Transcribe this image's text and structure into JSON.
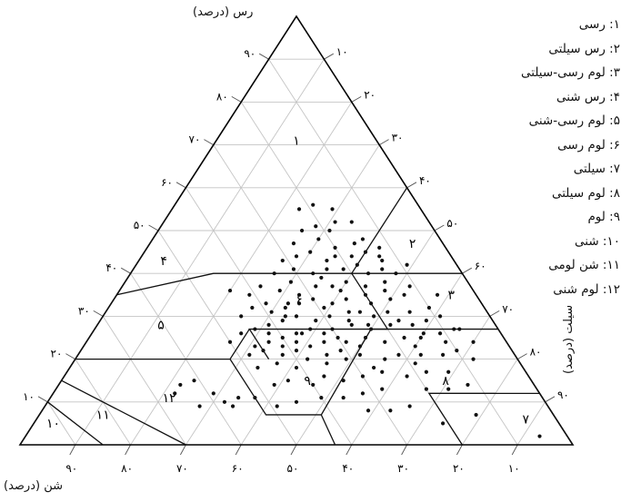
{
  "chart_data": {
    "type": "scatter",
    "plot_type": "ternary soil texture triangle",
    "axes": {
      "clay": {
        "label": "رس (درصد)",
        "ticks": [
          "۱۰",
          "۲۰",
          "۳۰",
          "۴۰",
          "۵۰",
          "۶۰",
          "۷۰",
          "۸۰",
          "۹۰"
        ]
      },
      "silt": {
        "label": "سیلت (درصد)",
        "ticks": [
          "۱۰",
          "۲۰",
          "۳۰",
          "۴۰",
          "۵۰",
          "۶۰",
          "۷۰",
          "۸۰",
          "۹۰"
        ]
      },
      "sand": {
        "label": "شن (درصد)",
        "ticks": [
          "۱۰",
          "۲۰",
          "۳۰",
          "۴۰",
          "۵۰",
          "۶۰",
          "۷۰",
          "۸۰",
          "۹۰"
        ]
      }
    },
    "grid": true,
    "legend_position": "top-right",
    "classes": [
      {
        "id": "1",
        "label": "۱: رسی",
        "marker": "۱",
        "sand": 15,
        "clay": 70
      },
      {
        "id": "2",
        "label": "۲: رس سیلتی",
        "marker": "۲",
        "sand": 6,
        "clay": 46
      },
      {
        "id": "3",
        "label": "۳: لوم رسی-سیلتی",
        "marker": "۳",
        "sand": 5,
        "clay": 34
      },
      {
        "id": "4",
        "label": "۴: رس شنی",
        "marker": "۴",
        "sand": 53,
        "clay": 42
      },
      {
        "id": "5",
        "label": "۵: لوم رسی-شنی",
        "marker": "۵",
        "sand": 61,
        "clay": 27
      },
      {
        "id": "6",
        "label": "۶: لوم رسی",
        "marker": "۶",
        "sand": 33,
        "clay": 33
      },
      {
        "id": "7",
        "label": "۷: سیلتی",
        "marker": "۷",
        "sand": 6,
        "clay": 5
      },
      {
        "id": "8",
        "label": "۸: لوم سیلتی",
        "marker": "۸",
        "sand": 16,
        "clay": 14
      },
      {
        "id": "9",
        "label": "۹: لوم",
        "marker": "۹",
        "sand": 41,
        "clay": 14
      },
      {
        "id": "10",
        "label": "۱۰: شنی",
        "marker": "۱۰",
        "sand": 92,
        "clay": 4
      },
      {
        "id": "11",
        "label": "۱۱: شن لومی",
        "marker": "۱۱",
        "sand": 82,
        "clay": 6
      },
      {
        "id": "12",
        "label": "۱۲: لوم شنی",
        "marker": "۱۲",
        "sand": 68,
        "clay": 10
      }
    ],
    "boundaries": [
      [
        [
          45,
          55
        ],
        [
          65,
          35
        ],
        [
          80,
          20
        ],
        [
          85,
          15
        ],
        [
          100,
          0
        ]
      ],
      [
        [
          20,
          40
        ],
        [
          0,
          60
        ]
      ],
      [
        [
          0,
          40
        ],
        [
          20,
          40
        ],
        [
          45,
          40
        ],
        [
          65,
          35
        ]
      ],
      [
        [
          45,
          20
        ],
        [
          45,
          27
        ],
        [
          20,
          27
        ],
        [
          20,
          40
        ]
      ],
      [
        [
          80,
          20
        ],
        [
          52,
          20
        ],
        [
          45,
          27
        ],
        [
          52,
          20
        ],
        [
          52,
          7
        ],
        [
          42,
          7
        ],
        [
          23,
          27
        ],
        [
          20,
          27
        ],
        [
          0,
          27
        ]
      ],
      [
        [
          42,
          7
        ],
        [
          43,
          0
        ]
      ],
      [
        [
          20,
          12
        ],
        [
          8,
          12
        ],
        [
          0,
          12
        ],
        [
          0,
          27
        ]
      ],
      [
        [
          0,
          12
        ],
        [
          0,
          0
        ]
      ],
      [
        [
          85,
          15
        ],
        [
          70,
          0
        ]
      ],
      [
        [
          90,
          10
        ],
        [
          85,
          0
        ]
      ],
      [
        [
          8,
          12
        ],
        [
          20,
          12
        ],
        [
          20,
          0
        ]
      ]
    ],
    "samples_sand_clay": [
      [
        18,
        44
      ],
      [
        16,
        47
      ],
      [
        14,
        48
      ],
      [
        19,
        50
      ],
      [
        21,
        51
      ],
      [
        17,
        52
      ],
      [
        13,
        43
      ],
      [
        20,
        46
      ],
      [
        22,
        48
      ],
      [
        23,
        43
      ],
      [
        25,
        45
      ],
      [
        28,
        44
      ],
      [
        14,
        41
      ],
      [
        17,
        40
      ],
      [
        22,
        38
      ],
      [
        26,
        39
      ],
      [
        30,
        41
      ],
      [
        15,
        38
      ],
      [
        12,
        40
      ],
      [
        19,
        37
      ],
      [
        24,
        36
      ],
      [
        28,
        37
      ],
      [
        32,
        38
      ],
      [
        35,
        36
      ],
      [
        38,
        37
      ],
      [
        41,
        35
      ],
      [
        44,
        36
      ],
      [
        13,
        35
      ],
      [
        16,
        34
      ],
      [
        20,
        33
      ],
      [
        24,
        34
      ],
      [
        27,
        33
      ],
      [
        30,
        34
      ],
      [
        33,
        33
      ],
      [
        36,
        32
      ],
      [
        39,
        33
      ],
      [
        42,
        32
      ],
      [
        45,
        30
      ],
      [
        10,
        32
      ],
      [
        14,
        31
      ],
      [
        18,
        31
      ],
      [
        21,
        30
      ],
      [
        25,
        31
      ],
      [
        29,
        30
      ],
      [
        32,
        29
      ],
      [
        35,
        30
      ],
      [
        38,
        29
      ],
      [
        41,
        28
      ],
      [
        44,
        27
      ],
      [
        47,
        26
      ],
      [
        12,
        29
      ],
      [
        15,
        28
      ],
      [
        19,
        28
      ],
      [
        23,
        27
      ],
      [
        26,
        28
      ],
      [
        30,
        27
      ],
      [
        34,
        27
      ],
      [
        37,
        26
      ],
      [
        40,
        25
      ],
      [
        43,
        24
      ],
      [
        46,
        23
      ],
      [
        50,
        24
      ],
      [
        8,
        27
      ],
      [
        11,
        26
      ],
      [
        15,
        25
      ],
      [
        18,
        25
      ],
      [
        22,
        24
      ],
      [
        25,
        25
      ],
      [
        29,
        24
      ],
      [
        33,
        24
      ],
      [
        36,
        23
      ],
      [
        39,
        22
      ],
      [
        42,
        21
      ],
      [
        45,
        22
      ],
      [
        48,
        21
      ],
      [
        10,
        22
      ],
      [
        13,
        21
      ],
      [
        17,
        21
      ],
      [
        21,
        21
      ],
      [
        24,
        20
      ],
      [
        28,
        21
      ],
      [
        31,
        20
      ],
      [
        35,
        19
      ],
      [
        38,
        20
      ],
      [
        41,
        18
      ],
      [
        44,
        19
      ],
      [
        48,
        18
      ],
      [
        14,
        17
      ],
      [
        18,
        17
      ],
      [
        22,
        16
      ],
      [
        26,
        17
      ],
      [
        30,
        16
      ],
      [
        34,
        15
      ],
      [
        37,
        16
      ],
      [
        40,
        14
      ],
      [
        44,
        15
      ],
      [
        47,
        14
      ],
      [
        12,
        14
      ],
      [
        16,
        13
      ],
      [
        20,
        13
      ],
      [
        28,
        13
      ],
      [
        32,
        12
      ],
      [
        36,
        11
      ],
      [
        40,
        11
      ],
      [
        45,
        10
      ],
      [
        25,
        9
      ],
      [
        29,
        8
      ],
      [
        33,
        8
      ],
      [
        14,
        7
      ],
      [
        21,
        5
      ],
      [
        8,
        20
      ],
      [
        6,
        24
      ],
      [
        9,
        30
      ],
      [
        7,
        35
      ],
      [
        11,
        37
      ],
      [
        9,
        42
      ],
      [
        12,
        46
      ],
      [
        15,
        45
      ],
      [
        18,
        42
      ],
      [
        21,
        41
      ],
      [
        24,
        41
      ],
      [
        27,
        40
      ],
      [
        31,
        43
      ],
      [
        34,
        40
      ],
      [
        27,
        47
      ],
      [
        24,
        50
      ],
      [
        16,
        55
      ],
      [
        19,
        56
      ],
      [
        22,
        55
      ],
      [
        14,
        52
      ],
      [
        61,
        15
      ],
      [
        64,
        14
      ],
      [
        59,
        12
      ],
      [
        66,
        12
      ],
      [
        55,
        11
      ],
      [
        58,
        10
      ],
      [
        57,
        9
      ],
      [
        63,
        9
      ],
      [
        52,
        11
      ],
      [
        49,
        9
      ],
      [
        5,
        2
      ],
      [
        31,
        22
      ],
      [
        32,
        26
      ],
      [
        17,
        29
      ],
      [
        27,
        23
      ],
      [
        11,
        24
      ],
      [
        38,
        24
      ],
      [
        19,
        19
      ],
      [
        7,
        27
      ],
      [
        23,
        31
      ],
      [
        35,
        33
      ],
      [
        20,
        35
      ],
      [
        29,
        32
      ],
      [
        16,
        36
      ],
      [
        26,
        29
      ],
      [
        13,
        44
      ],
      [
        21,
        44
      ],
      [
        25,
        37
      ],
      [
        32,
        35
      ],
      [
        37,
        30
      ],
      [
        42,
        26
      ],
      [
        39,
        31
      ],
      [
        23,
        28
      ],
      [
        30,
        25
      ],
      [
        17,
        23
      ],
      [
        14,
        26
      ],
      [
        34,
        21
      ],
      [
        27,
        18
      ],
      [
        41,
        23
      ],
      [
        36,
        26
      ]
    ]
  }
}
